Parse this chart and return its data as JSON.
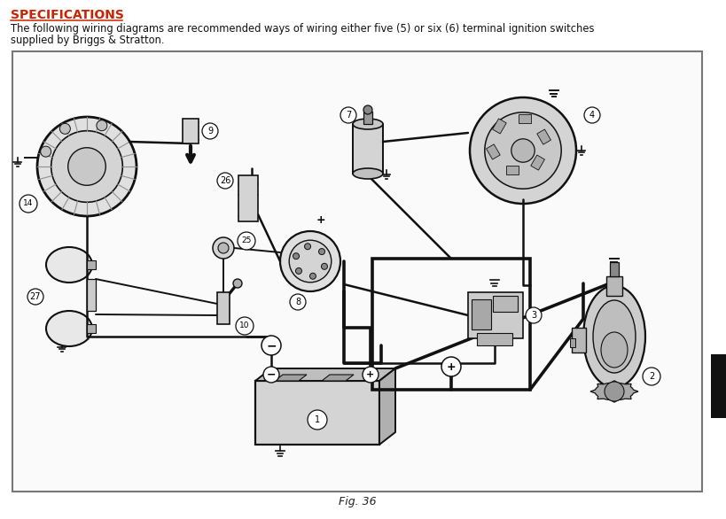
{
  "title": "SPECIFICATIONS",
  "body_line1": "The following wiring diagrams are recommended ways of wiring either five (5) or six (6) terminal ignition switches",
  "body_line2": "supplied by Briggs & Stratton.",
  "fig_label": "Fig. 36",
  "bg_color": "#ffffff",
  "title_color": "#cc2200",
  "body_color": "#111111",
  "diag_border": "#777777",
  "wire_color": "#111111",
  "comp_fill": "#d8d8d8",
  "comp_edge": "#111111",
  "right_tab": "#111111"
}
